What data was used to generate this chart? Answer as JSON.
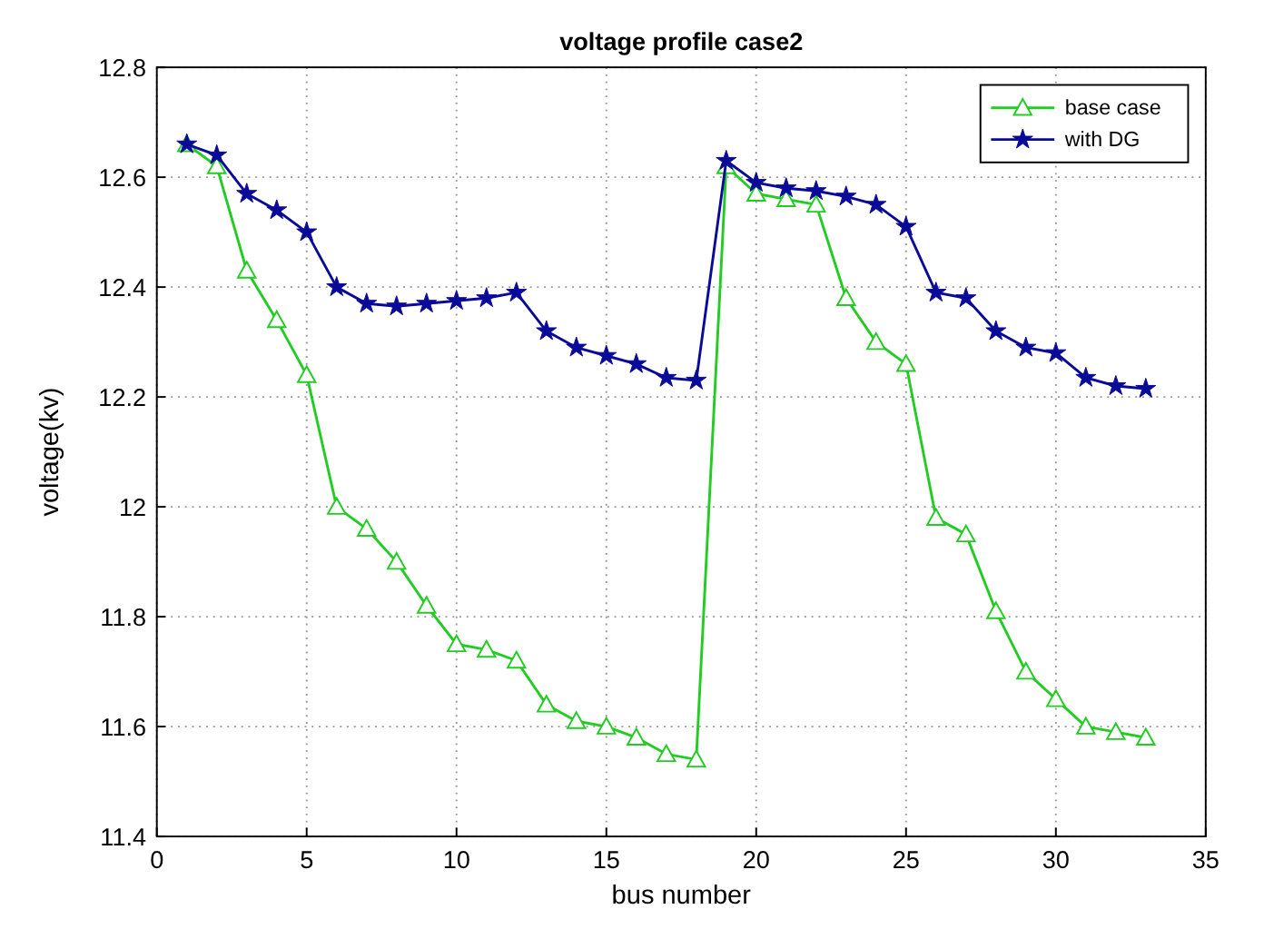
{
  "chart_data": {
    "type": "line",
    "title": "voltage profile case2",
    "xlabel": "bus number",
    "ylabel": "voltage(kv)",
    "x": [
      1,
      2,
      3,
      4,
      5,
      6,
      7,
      8,
      9,
      10,
      11,
      12,
      13,
      14,
      15,
      16,
      17,
      18,
      19,
      20,
      21,
      22,
      23,
      24,
      25,
      26,
      27,
      28,
      29,
      30,
      31,
      32,
      33
    ],
    "xlim": [
      0,
      35
    ],
    "xticks": [
      0,
      5,
      10,
      15,
      20,
      25,
      30,
      35
    ],
    "ylim": [
      11.4,
      12.8
    ],
    "yticks": [
      11.4,
      11.6,
      11.8,
      {
        "value": 12,
        "label": "12"
      },
      12.2,
      12.4,
      12.6,
      12.8
    ],
    "grid": true,
    "legend": "top right",
    "series": [
      {
        "name": "base case",
        "color": "#22cc22",
        "marker": "triangle",
        "values": [
          12.66,
          12.62,
          12.43,
          12.34,
          12.24,
          12.0,
          11.96,
          11.9,
          11.82,
          11.75,
          11.74,
          11.72,
          11.64,
          11.61,
          11.6,
          11.58,
          11.55,
          11.54,
          12.62,
          12.57,
          12.56,
          12.55,
          12.38,
          12.3,
          12.26,
          11.98,
          11.95,
          11.81,
          11.7,
          11.65,
          11.6,
          11.59,
          11.58
        ]
      },
      {
        "name": "with DG",
        "color": "#0a0a99",
        "marker": "star",
        "values": [
          12.66,
          12.64,
          12.57,
          12.54,
          12.5,
          12.4,
          12.37,
          12.365,
          12.37,
          12.375,
          12.38,
          12.39,
          12.32,
          12.29,
          12.275,
          12.26,
          12.235,
          12.23,
          12.63,
          12.59,
          12.58,
          12.575,
          12.565,
          12.55,
          12.51,
          12.39,
          12.38,
          12.32,
          12.29,
          12.28,
          12.235,
          12.22,
          12.215
        ]
      }
    ]
  }
}
